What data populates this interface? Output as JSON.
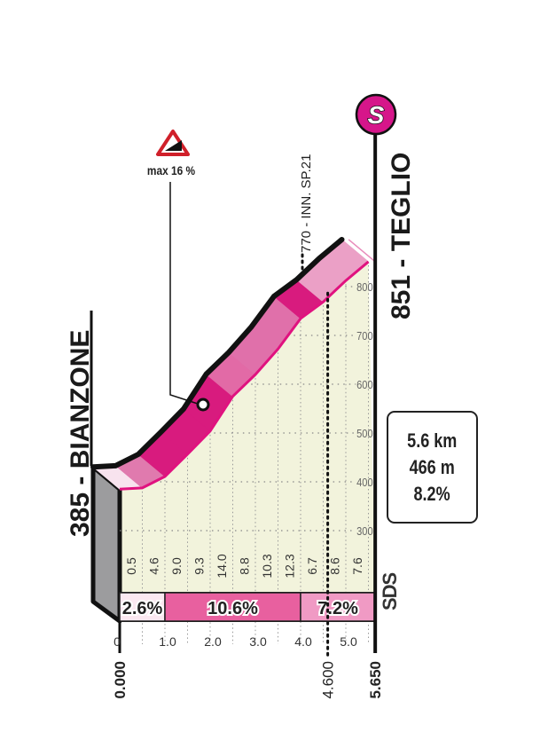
{
  "chart_data": {
    "type": "area",
    "title": "",
    "start": {
      "elevation_label": "385",
      "name": "BIANZONE",
      "elevation": 385
    },
    "finish": {
      "elevation_label": "851",
      "name": "TEGLIO",
      "elevation": 851
    },
    "finish_icon": {
      "name": "sprint-s-icon",
      "letter": "S",
      "color": "#d6168a"
    },
    "km_ticks": [
      "0",
      "1.0",
      "2.0",
      "3.0",
      "4.0",
      "5.0"
    ],
    "km_values": [
      0,
      1,
      2,
      3,
      4,
      5
    ],
    "elevation_ticks": [
      "300",
      "400",
      "500",
      "600",
      "700",
      "800"
    ],
    "elevation_values": [
      300,
      400,
      500,
      600,
      700,
      800
    ],
    "segment_length_km": 0.5,
    "segment_gradients": [
      "0.5",
      "4.6",
      "9.0",
      "9.3",
      "14.0",
      "8.8",
      "10.3",
      "12.3",
      "6.7",
      "8.6",
      "7.6"
    ],
    "segment_colors": [
      "#f8e3ee",
      "#e07aae",
      "#d81b7e",
      "#d81b7e",
      "#d81b7e",
      "#e26aa6",
      "#e070aa",
      "#e070aa",
      "#d81b7e",
      "#eba0c6",
      "#eba0c6"
    ],
    "gradient_bands": [
      {
        "from_km": 0,
        "to_km": 1.0,
        "label": "2.6%",
        "color": "#fbe8f1"
      },
      {
        "from_km": 1.0,
        "to_km": 4.0,
        "label": "10.6%",
        "color": "#e8609f"
      },
      {
        "from_km": 4.0,
        "to_km": 5.65,
        "label": "7.2%",
        "color": "#f09ac4"
      }
    ],
    "distance_markers": [
      {
        "km": 0.0,
        "label": "0.000"
      },
      {
        "km": 4.6,
        "label": "4.600"
      },
      {
        "km": 5.65,
        "label": "5.650"
      }
    ],
    "annotations": {
      "max_gradient": "max 16 %",
      "point_of_interest": "770 - INN. SP.21"
    },
    "summary": {
      "distance": "5.6 km",
      "gain": "466 m",
      "avg_gradient": "8.2%"
    },
    "logo": "SDS",
    "colors": {
      "fill": "#f2f3dc",
      "profile_line": "#e0127f",
      "wall": "#9c9c9e"
    }
  }
}
